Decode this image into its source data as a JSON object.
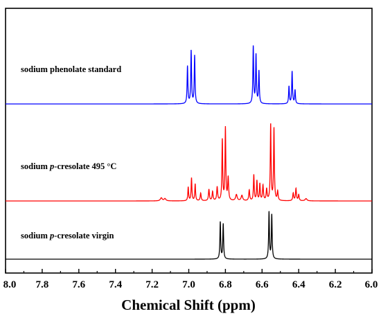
{
  "chart_data": {
    "type": "line",
    "title": "",
    "xlabel": "Chemical Shift (ppm)",
    "ylabel": "",
    "xlim": [
      8.0,
      6.0
    ],
    "x_reversed": true,
    "x_ticks": [
      "8.0",
      "7.8",
      "7.6",
      "7.4",
      "7.2",
      "7.0",
      "6.8",
      "6.6",
      "6.4",
      "6.2",
      "6.0"
    ],
    "grid": false,
    "legend": "none",
    "series": [
      {
        "name": "sodium phenolate standard",
        "label_parts": [
          {
            "text": "sodium phenolate standard",
            "italic": false
          }
        ],
        "color": "#0000ff",
        "baseline": 0,
        "peaks": [
          {
            "x": 7.007,
            "h": 0.6,
            "w": 0.0025
          },
          {
            "x": 6.987,
            "h": 0.85,
            "w": 0.0025
          },
          {
            "x": 6.968,
            "h": 0.77,
            "w": 0.0025
          },
          {
            "x": 6.648,
            "h": 0.92,
            "w": 0.0025
          },
          {
            "x": 6.633,
            "h": 0.78,
            "w": 0.0025
          },
          {
            "x": 6.617,
            "h": 0.52,
            "w": 0.0025
          },
          {
            "x": 6.453,
            "h": 0.28,
            "w": 0.0025
          },
          {
            "x": 6.436,
            "h": 0.52,
            "w": 0.0025
          },
          {
            "x": 6.42,
            "h": 0.22,
            "w": 0.0025
          }
        ]
      },
      {
        "name": "sodium p-cresolate 495 °C",
        "label_parts": [
          {
            "text": "sodium ",
            "italic": false
          },
          {
            "text": "p",
            "italic": true
          },
          {
            "text": "-cresolate 495 °C",
            "italic": false
          }
        ],
        "color": "#ff0000",
        "baseline": 0,
        "peaks": [
          {
            "x": 7.15,
            "h": 0.04,
            "w": 0.006
          },
          {
            "x": 7.13,
            "h": 0.03,
            "w": 0.006
          },
          {
            "x": 7.003,
            "h": 0.18,
            "w": 0.0025
          },
          {
            "x": 6.985,
            "h": 0.3,
            "w": 0.0025
          },
          {
            "x": 6.965,
            "h": 0.22,
            "w": 0.0025
          },
          {
            "x": 6.935,
            "h": 0.1,
            "w": 0.003
          },
          {
            "x": 6.89,
            "h": 0.15,
            "w": 0.003
          },
          {
            "x": 6.87,
            "h": 0.12,
            "w": 0.003
          },
          {
            "x": 6.845,
            "h": 0.18,
            "w": 0.003
          },
          {
            "x": 6.817,
            "h": 0.8,
            "w": 0.0025
          },
          {
            "x": 6.8,
            "h": 0.95,
            "w": 0.0025
          },
          {
            "x": 6.785,
            "h": 0.3,
            "w": 0.003
          },
          {
            "x": 6.74,
            "h": 0.08,
            "w": 0.005
          },
          {
            "x": 6.71,
            "h": 0.07,
            "w": 0.005
          },
          {
            "x": 6.67,
            "h": 0.14,
            "w": 0.003
          },
          {
            "x": 6.645,
            "h": 0.34,
            "w": 0.0025
          },
          {
            "x": 6.628,
            "h": 0.26,
            "w": 0.0025
          },
          {
            "x": 6.612,
            "h": 0.22,
            "w": 0.0025
          },
          {
            "x": 6.595,
            "h": 0.2,
            "w": 0.003
          },
          {
            "x": 6.575,
            "h": 0.15,
            "w": 0.003
          },
          {
            "x": 6.553,
            "h": 1.0,
            "w": 0.0025
          },
          {
            "x": 6.535,
            "h": 0.95,
            "w": 0.0025
          },
          {
            "x": 6.515,
            "h": 0.12,
            "w": 0.003
          },
          {
            "x": 6.43,
            "h": 0.1,
            "w": 0.003
          },
          {
            "x": 6.415,
            "h": 0.16,
            "w": 0.003
          },
          {
            "x": 6.4,
            "h": 0.08,
            "w": 0.003
          },
          {
            "x": 6.36,
            "h": 0.03,
            "w": 0.006
          }
        ]
      },
      {
        "name": "sodium p-cresolate virgin",
        "label_parts": [
          {
            "text": "sodium ",
            "italic": false
          },
          {
            "text": "p",
            "italic": true
          },
          {
            "text": "-cresolate virgin",
            "italic": false
          }
        ],
        "color": "#000000",
        "baseline": 0,
        "peaks": [
          {
            "x": 6.828,
            "h": 0.67,
            "w": 0.0025
          },
          {
            "x": 6.812,
            "h": 0.63,
            "w": 0.0025
          },
          {
            "x": 6.562,
            "h": 0.85,
            "w": 0.0025
          },
          {
            "x": 6.547,
            "h": 0.8,
            "w": 0.0025
          }
        ]
      }
    ]
  }
}
